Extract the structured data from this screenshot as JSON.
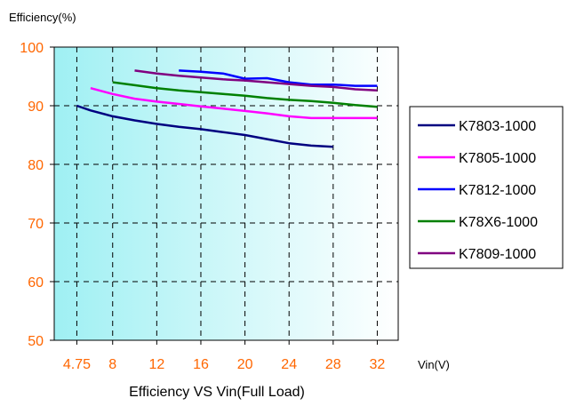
{
  "chart_data": {
    "type": "line",
    "title": "Efficiency VS Vin(Full Load)",
    "ylabel": "Efficiency(%)",
    "xlabel": "Vin(V)",
    "x_ticks": [
      {
        "value": 4.75,
        "label": "4.75"
      },
      {
        "value": 8,
        "label": "8"
      },
      {
        "value": 12,
        "label": "12"
      },
      {
        "value": 16,
        "label": "16"
      },
      {
        "value": 20,
        "label": "20"
      },
      {
        "value": 24,
        "label": "24"
      },
      {
        "value": 28,
        "label": "28"
      },
      {
        "value": 32,
        "label": "32"
      }
    ],
    "y_ticks": [
      50,
      60,
      70,
      80,
      90,
      100
    ],
    "xlim": [
      2.7,
      33.9
    ],
    "ylim": [
      50,
      100
    ],
    "grid": true,
    "legend_position": "right",
    "colors": {
      "tick_labels": "#ff6600",
      "axis_titles": "#000000",
      "background_left": "#9ff0f3",
      "background_right": "#ffffff"
    },
    "series": [
      {
        "name": "K7803-1000",
        "color": "#000080",
        "x": [
          4.75,
          6,
          8,
          10,
          12,
          14,
          16,
          18,
          20,
          22,
          24,
          26,
          28
        ],
        "y": [
          90,
          89.2,
          88.2,
          87.5,
          86.9,
          86.4,
          86,
          85.5,
          85,
          84.3,
          83.6,
          83.2,
          83
        ]
      },
      {
        "name": "K7805-1000",
        "color": "#ff00ff",
        "x": [
          6,
          8,
          10,
          12,
          14,
          16,
          18,
          20,
          22,
          24,
          26,
          28,
          30,
          32
        ],
        "y": [
          93,
          92,
          91.2,
          90.7,
          90.3,
          89.9,
          89.5,
          89.1,
          88.7,
          88.2,
          87.9,
          87.9,
          87.9,
          87.9
        ]
      },
      {
        "name": "K7812-1000",
        "color": "#0000ff",
        "x": [
          14,
          16,
          18,
          20,
          22,
          24,
          26,
          28,
          30,
          32
        ],
        "y": [
          96,
          95.8,
          95.5,
          94.6,
          94.7,
          94,
          93.6,
          93.6,
          93.4,
          93.4
        ]
      },
      {
        "name": "K78X6-1000",
        "color": "#008000",
        "x": [
          8,
          10,
          12,
          14,
          16,
          18,
          20,
          22,
          24,
          26,
          28,
          30,
          32
        ],
        "y": [
          94,
          93.5,
          93,
          92.6,
          92.3,
          92,
          91.7,
          91.3,
          91,
          90.8,
          90.5,
          90.1,
          89.8
        ]
      },
      {
        "name": "K7809-1000",
        "color": "#800080",
        "x": [
          10,
          12,
          14,
          16,
          18,
          20,
          22,
          24,
          26,
          28,
          30,
          32
        ],
        "y": [
          96,
          95.5,
          95.1,
          94.8,
          94.5,
          94.3,
          94,
          93.7,
          93.4,
          93.2,
          92.8,
          92.6
        ]
      }
    ]
  }
}
